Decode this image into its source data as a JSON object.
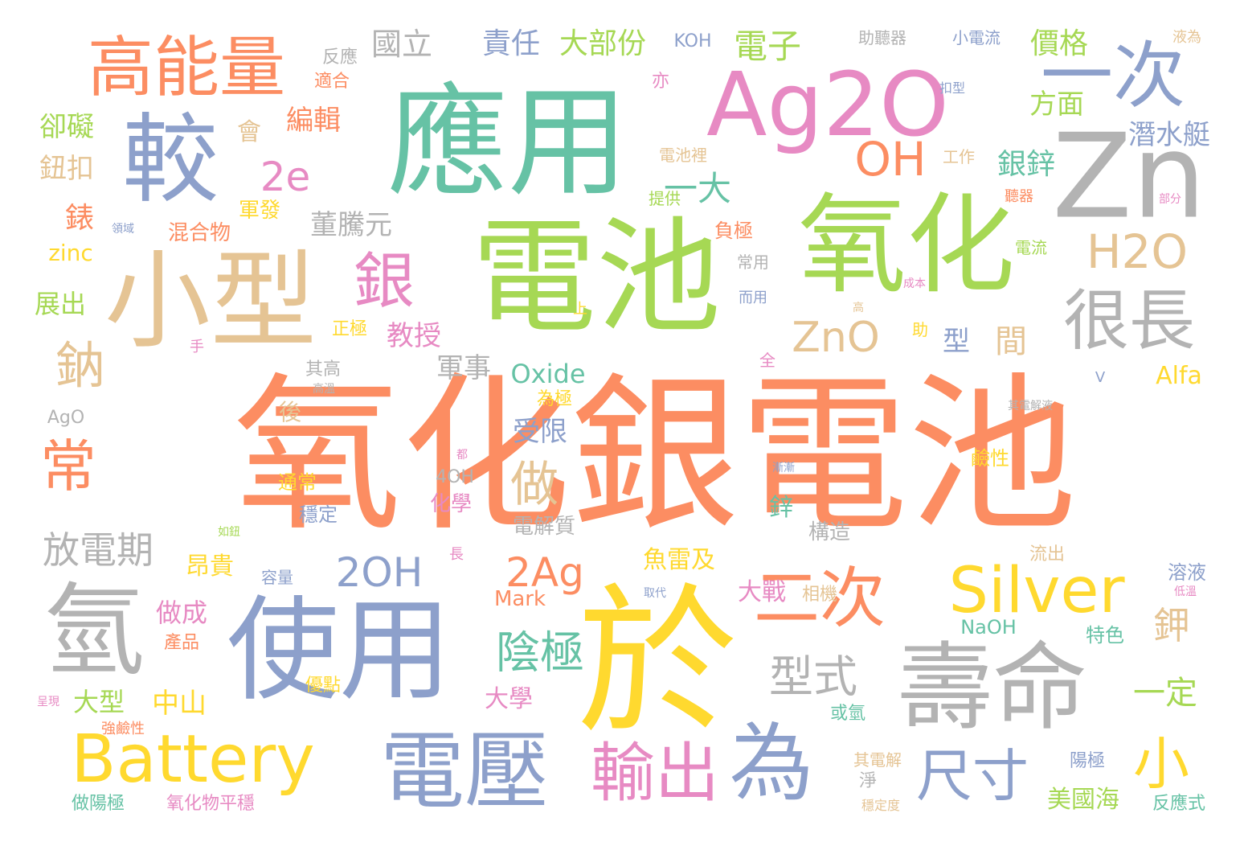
{
  "palette": {
    "orange": "#fc8d62",
    "teal": "#66c2a5",
    "blue": "#8da0cb",
    "pink": "#e78ac3",
    "green": "#a6d854",
    "yellow": "#ffd92f",
    "tan": "#e5c494",
    "gray": "#b3b3b3"
  },
  "words": [
    {
      "text": "氧化銀電池",
      "color": "orange"
    },
    {
      "text": "電池",
      "color": "green"
    },
    {
      "text": "應用",
      "color": "teal"
    },
    {
      "text": "Ag2O",
      "color": "pink"
    },
    {
      "text": "Zn",
      "color": "gray"
    },
    {
      "text": "氧化",
      "color": "green"
    },
    {
      "text": "小型",
      "color": "tan"
    },
    {
      "text": "於",
      "color": "yellow"
    },
    {
      "text": "使用",
      "color": "blue"
    },
    {
      "text": "氫",
      "color": "gray"
    },
    {
      "text": "壽命",
      "color": "gray"
    },
    {
      "text": "電壓",
      "color": "blue"
    },
    {
      "text": "較",
      "color": "blue"
    },
    {
      "text": "高能量",
      "color": "orange"
    },
    {
      "text": "Battery",
      "color": "yellow"
    },
    {
      "text": "為",
      "color": "blue"
    },
    {
      "text": "一次",
      "color": "blue"
    },
    {
      "text": "二次",
      "color": "orange"
    },
    {
      "text": "Silver",
      "color": "yellow"
    },
    {
      "text": "輸出",
      "color": "pink"
    },
    {
      "text": "很長",
      "color": "gray"
    },
    {
      "text": "尺寸",
      "color": "blue"
    },
    {
      "text": "銀",
      "color": "pink"
    },
    {
      "text": "小",
      "color": "yellow"
    },
    {
      "text": "OH",
      "color": "orange"
    },
    {
      "text": "H2O",
      "color": "tan"
    },
    {
      "text": "ZnO",
      "color": "tan"
    },
    {
      "text": "2OH",
      "color": "blue"
    },
    {
      "text": "2Ag",
      "color": "orange"
    },
    {
      "text": "陰極",
      "color": "teal"
    },
    {
      "text": "型式",
      "color": "gray"
    },
    {
      "text": "做",
      "color": "tan"
    },
    {
      "text": "常",
      "color": "orange"
    },
    {
      "text": "鈉",
      "color": "tan"
    },
    {
      "text": "2e",
      "color": "pink"
    },
    {
      "text": "一大",
      "color": "teal"
    },
    {
      "text": "放電期",
      "color": "gray"
    },
    {
      "text": "鉀",
      "color": "tan"
    },
    {
      "text": "一定",
      "color": "green"
    },
    {
      "text": "電子",
      "color": "green"
    },
    {
      "text": "國立",
      "color": "gray"
    },
    {
      "text": "責任",
      "color": "blue"
    },
    {
      "text": "大部份",
      "color": "green"
    },
    {
      "text": "價格",
      "color": "green"
    },
    {
      "text": "方面",
      "color": "green"
    },
    {
      "text": "銀鋅",
      "color": "teal"
    },
    {
      "text": "潛水艇",
      "color": "blue"
    },
    {
      "text": "間",
      "color": "tan"
    },
    {
      "text": "型",
      "color": "blue"
    },
    {
      "text": "教授",
      "color": "pink"
    },
    {
      "text": "軍事",
      "color": "gray"
    },
    {
      "text": "Oxide",
      "color": "teal"
    },
    {
      "text": "Alfa",
      "color": "yellow"
    },
    {
      "text": "受限",
      "color": "blue"
    },
    {
      "text": "董騰元",
      "color": "gray"
    },
    {
      "text": "編輯",
      "color": "orange"
    },
    {
      "text": "錶",
      "color": "orange"
    },
    {
      "text": "鈕扣",
      "color": "tan"
    },
    {
      "text": "卻礙",
      "color": "green"
    },
    {
      "text": "反應",
      "color": "gray"
    },
    {
      "text": "適合",
      "color": "orange"
    },
    {
      "text": "會",
      "color": "tan"
    },
    {
      "text": "軍發",
      "color": "yellow"
    },
    {
      "text": "混合物",
      "color": "orange"
    },
    {
      "text": "zinc",
      "color": "yellow"
    },
    {
      "text": "展出",
      "color": "green"
    },
    {
      "text": "KOH",
      "color": "blue"
    },
    {
      "text": "助聽器",
      "color": "gray"
    },
    {
      "text": "小電流",
      "color": "blue"
    },
    {
      "text": "液為",
      "color": "tan"
    },
    {
      "text": "亦",
      "color": "pink"
    },
    {
      "text": "扣型",
      "color": "blue"
    },
    {
      "text": "電池裡",
      "color": "tan"
    },
    {
      "text": "工作",
      "color": "tan"
    },
    {
      "text": "提供",
      "color": "green"
    },
    {
      "text": "聽器",
      "color": "orange"
    },
    {
      "text": "部分",
      "color": "pink"
    },
    {
      "text": "負極",
      "color": "orange"
    },
    {
      "text": "常用",
      "color": "gray"
    },
    {
      "text": "電流",
      "color": "green"
    },
    {
      "text": "成本",
      "color": "pink"
    },
    {
      "text": "而用",
      "color": "blue"
    },
    {
      "text": "高",
      "color": "tan"
    },
    {
      "text": "上",
      "color": "yellow"
    },
    {
      "text": "助",
      "color": "yellow"
    },
    {
      "text": "正極",
      "color": "yellow"
    },
    {
      "text": "手",
      "color": "pink"
    },
    {
      "text": "領域",
      "color": "blue"
    },
    {
      "text": "全",
      "color": "pink"
    },
    {
      "text": "其高",
      "color": "gray"
    },
    {
      "text": "高溫",
      "color": "gray"
    },
    {
      "text": "AgO",
      "color": "gray"
    },
    {
      "text": "後",
      "color": "tan"
    },
    {
      "text": "為極",
      "color": "yellow"
    },
    {
      "text": "V",
      "color": "blue"
    },
    {
      "text": "其電解液",
      "color": "gray"
    },
    {
      "text": "通常",
      "color": "yellow"
    },
    {
      "text": "都",
      "color": "pink"
    },
    {
      "text": "4OH",
      "color": "gray"
    },
    {
      "text": "化學",
      "color": "pink"
    },
    {
      "text": "穩定",
      "color": "blue"
    },
    {
      "text": "漸漸",
      "color": "blue"
    },
    {
      "text": "鋅",
      "color": "teal"
    },
    {
      "text": "電解質",
      "color": "gray"
    },
    {
      "text": "構造",
      "color": "gray"
    },
    {
      "text": "鹼性",
      "color": "yellow"
    },
    {
      "text": "如鈕",
      "color": "green"
    },
    {
      "text": "長",
      "color": "pink"
    },
    {
      "text": "流出",
      "color": "tan"
    },
    {
      "text": "溶液",
      "color": "blue"
    },
    {
      "text": "低溫",
      "color": "pink"
    },
    {
      "text": "Mark",
      "color": "orange"
    },
    {
      "text": "昂貴",
      "color": "yellow"
    },
    {
      "text": "容量",
      "color": "blue"
    },
    {
      "text": "魚雷及",
      "color": "yellow"
    },
    {
      "text": "大戰",
      "color": "pink"
    },
    {
      "text": "相機",
      "color": "tan"
    },
    {
      "text": "取代",
      "color": "blue"
    },
    {
      "text": "做成",
      "color": "pink"
    },
    {
      "text": "產品",
      "color": "orange"
    },
    {
      "text": "NaOH",
      "color": "teal"
    },
    {
      "text": "特色",
      "color": "teal"
    },
    {
      "text": "大學",
      "color": "pink"
    },
    {
      "text": "優點",
      "color": "yellow"
    },
    {
      "text": "或氫",
      "color": "teal"
    },
    {
      "text": "大型",
      "color": "green"
    },
    {
      "text": "中山",
      "color": "yellow"
    },
    {
      "text": "呈現",
      "color": "pink"
    },
    {
      "text": "強鹼性",
      "color": "orange"
    },
    {
      "text": "其電解",
      "color": "tan"
    },
    {
      "text": "陽極",
      "color": "blue"
    },
    {
      "text": "淨",
      "color": "gray"
    },
    {
      "text": "穩定度",
      "color": "tan"
    },
    {
      "text": "做陽極",
      "color": "teal"
    },
    {
      "text": "氧化物平穩",
      "color": "pink"
    },
    {
      "text": "美國海",
      "color": "green"
    },
    {
      "text": "反應式",
      "color": "teal"
    }
  ]
}
